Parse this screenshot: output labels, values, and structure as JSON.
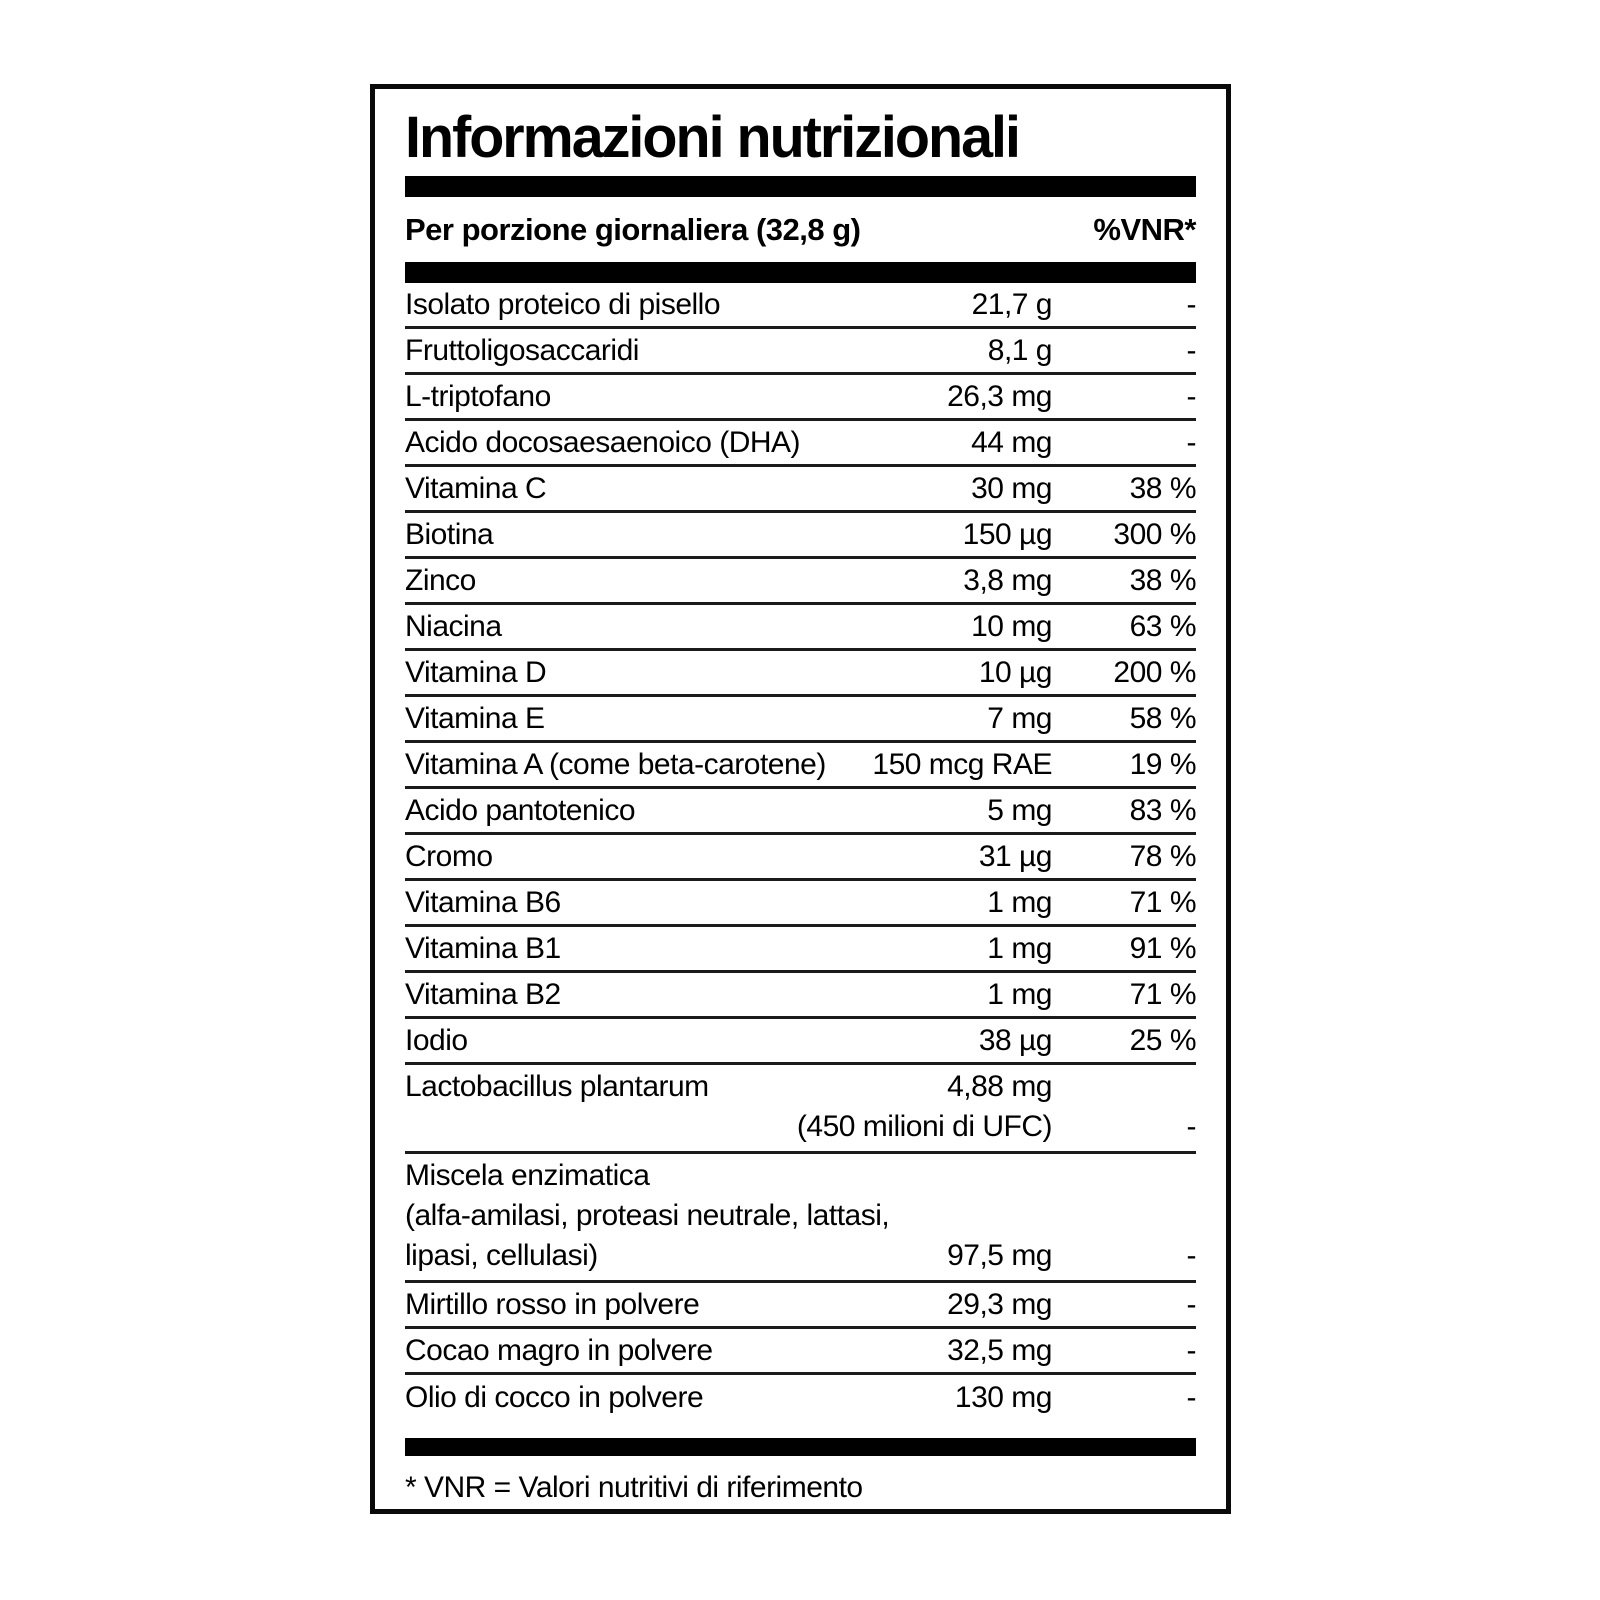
{
  "label": {
    "title": "Informazioni nutrizionali",
    "header": {
      "serving_label": "Per porzione giornaliera (32,8 g)",
      "vnr_label": "%VNR*"
    },
    "rows": [
      {
        "name": "Isolato proteico di pisello",
        "amount": "21,7 g",
        "vnr": "-"
      },
      {
        "name": "Fruttoligosaccaridi",
        "amount": "8,1 g",
        "vnr": "-"
      },
      {
        "name": "L-triptofano",
        "amount": "26,3 mg",
        "vnr": "-"
      },
      {
        "name": "Acido docosaesaenoico (DHA)",
        "amount": "44 mg",
        "vnr": "-"
      },
      {
        "name": "Vitamina C",
        "amount": "30 mg",
        "vnr": "38 %"
      },
      {
        "name": "Biotina",
        "amount": "150 µg",
        "vnr": "300 %"
      },
      {
        "name": "Zinco",
        "amount": "3,8 mg",
        "vnr": "38 %"
      },
      {
        "name": "Niacina",
        "amount": "10 mg",
        "vnr": "63 %"
      },
      {
        "name": "Vitamina D",
        "amount": "10 µg",
        "vnr": "200 %"
      },
      {
        "name": "Vitamina E",
        "amount": "7 mg",
        "vnr": "58 %"
      },
      {
        "name": "Vitamina A (come beta-carotene)",
        "amount": "150 mcg RAE",
        "vnr": "19 %"
      },
      {
        "name": "Acido pantotenico",
        "amount": "5 mg",
        "vnr": "83 %"
      },
      {
        "name": "Cromo",
        "amount": "31 µg",
        "vnr": "78 %"
      },
      {
        "name": "Vitamina B6",
        "amount": "1 mg",
        "vnr": "71 %"
      },
      {
        "name": "Vitamina B1",
        "amount": "1 mg",
        "vnr": "91 %"
      },
      {
        "name": "Vitamina B2",
        "amount": "1 mg",
        "vnr": "71 %"
      },
      {
        "name": "Iodio",
        "amount": "38 µg",
        "vnr": "25 %"
      }
    ],
    "lactobacillus_row": {
      "name": "Lactobacillus plantarum",
      "amount_line1": "4,88 mg",
      "amount_line2": "(450 milioni di UFC)",
      "vnr": "-"
    },
    "enzyme_blend_row": {
      "name_line1": "Miscela enzimatica",
      "name_line2": "(alfa-amilasi, proteasi neutrale, lattasi,",
      "name_line3": "lipasi, cellulasi)",
      "amount": "97,5 mg",
      "vnr": "-"
    },
    "bottom_rows": [
      {
        "name": "Mirtillo rosso in polvere",
        "amount": "29,3 mg",
        "vnr": "-"
      },
      {
        "name": "Cocao magro in polvere",
        "amount": "32,5 mg",
        "vnr": "-"
      },
      {
        "name": "Olio di cocco in polvere",
        "amount": "130 mg",
        "vnr": "-"
      }
    ],
    "footnote": "* VNR = Valori nutritivi di riferimento",
    "colors": {
      "ink": "#000000",
      "paper": "#ffffff",
      "rule": "#1b1b1b"
    }
  }
}
